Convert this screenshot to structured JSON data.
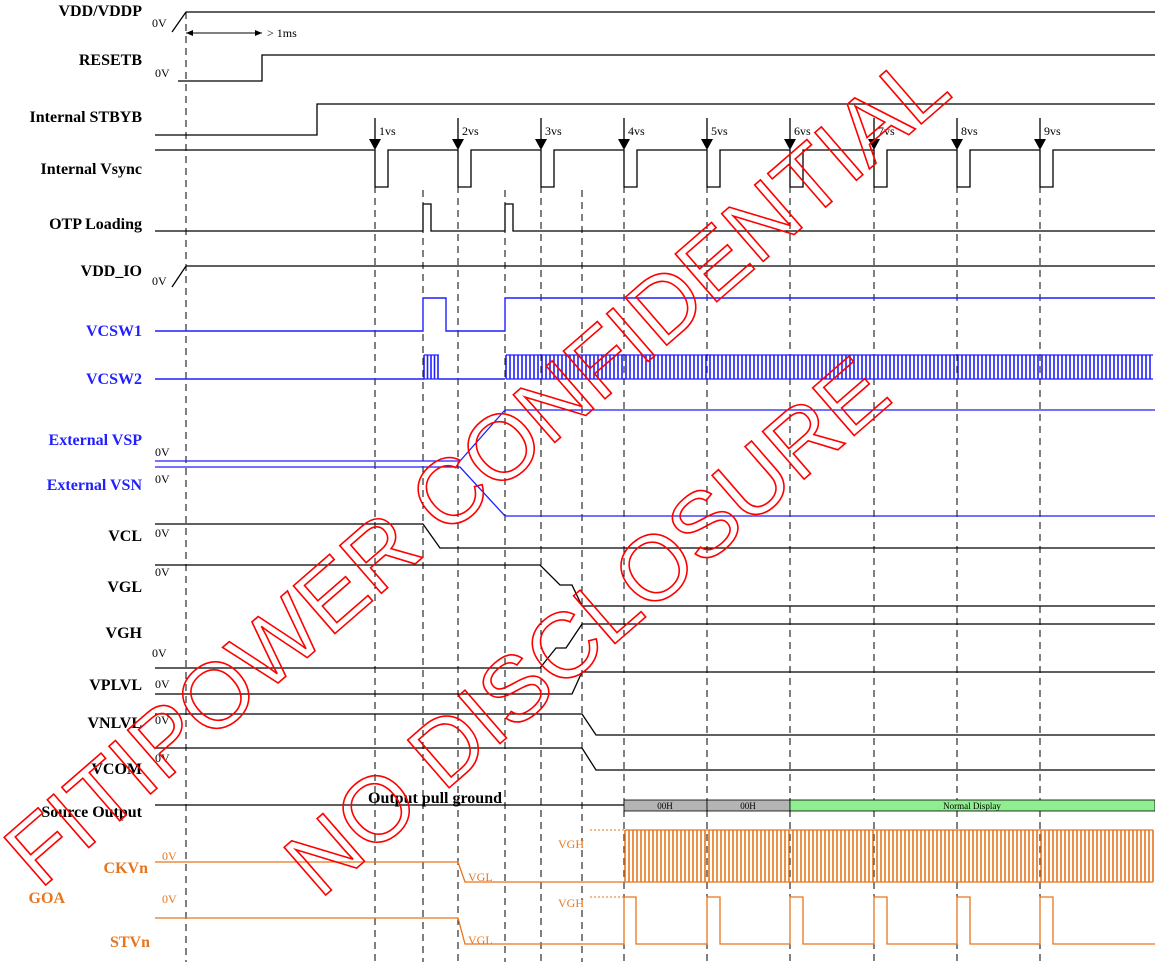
{
  "colors": {
    "black": "#000000",
    "blue": "#1f1fff",
    "orange": "#e6761e",
    "gray": "#b4b4b4",
    "green": "#8fee8f",
    "watermark": "#ff0000"
  },
  "signals": {
    "vdd_vddp": "VDD/VDDP",
    "resetb": "RESETB",
    "stbyb": "Internal STBYB",
    "vsync": "Internal Vsync",
    "otp": "OTP Loading",
    "vdd_io": "VDD_IO",
    "vcsw1": "VCSW1",
    "vcsw2": "VCSW2",
    "vsp": "External VSP",
    "vsn": "External VSN",
    "vcl": "VCL",
    "vgl": "VGL",
    "vgh": "VGH",
    "vplvl": "VPLVL",
    "vnlvl": "VNLVL",
    "vcom": "VCOM",
    "source": "Source Output",
    "ckvn": "CKVn",
    "goa": "GOA",
    "stvn": "STVn"
  },
  "labels": {
    "zero_v": "0V",
    "reset_delay": "> 1ms",
    "pull_ground": "Output pull ground",
    "seg_00h_1": "00H",
    "seg_00h_2": "00H",
    "normal_display": "Normal Display",
    "vgh_level": "VGH",
    "vgl_level": "VGL"
  },
  "vsync_markers": [
    "1vs",
    "2vs",
    "3vs",
    "4vs",
    "5vs",
    "6vs",
    "7vs",
    "8vs",
    "9vs"
  ],
  "watermark": {
    "line1": "FITIPOWER CONFIDENTIAL",
    "line2": "NO DISCLOSURE"
  }
}
